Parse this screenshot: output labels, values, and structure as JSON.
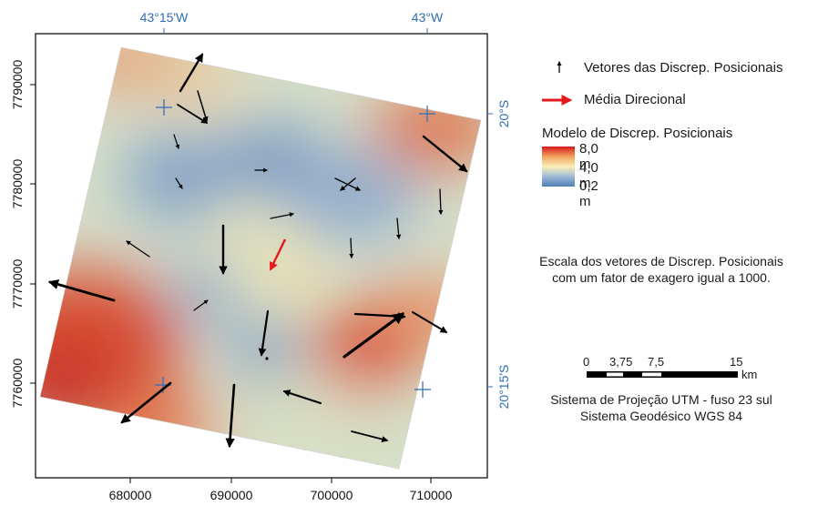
{
  "map": {
    "top_longitude_labels": [
      "43°15'W",
      "43°W"
    ],
    "right_latitude_labels": [
      "20°S",
      "20°15'S"
    ],
    "left_northing_labels": [
      "7790000",
      "7780000",
      "7770000",
      "7760000"
    ],
    "bottom_easting_labels": [
      "680000",
      "690000",
      "700000",
      "710000"
    ],
    "colors": {
      "graticule": "#2e6db4",
      "high": "#d7191c",
      "mid": "#fbf0b8",
      "low": "#4d7fb8",
      "mean_vector": "#e41a1c",
      "vectors": "#000000"
    }
  },
  "legend": {
    "vectors_label": "Vetores das Discrep. Posicionais",
    "mean_label": "Média Direcional",
    "model_title": "Modelo de Discrep. Posicionais",
    "ramp_high": "8,0 m",
    "ramp_mid": "4,0 m",
    "ramp_low": "0,2 m"
  },
  "scale_note": {
    "line1": "Escala dos vetores de Discrep. Posicionais",
    "line2": "com um fator de exagero igual a 1000."
  },
  "scalebar": {
    "ticks": [
      "0",
      "3,75",
      "7,5",
      "15"
    ],
    "unit": "km"
  },
  "crs": {
    "line1": "Sistema de Projeção UTM - fuso 23 sul",
    "line2": "Sistema Geodésico WGS 84"
  }
}
